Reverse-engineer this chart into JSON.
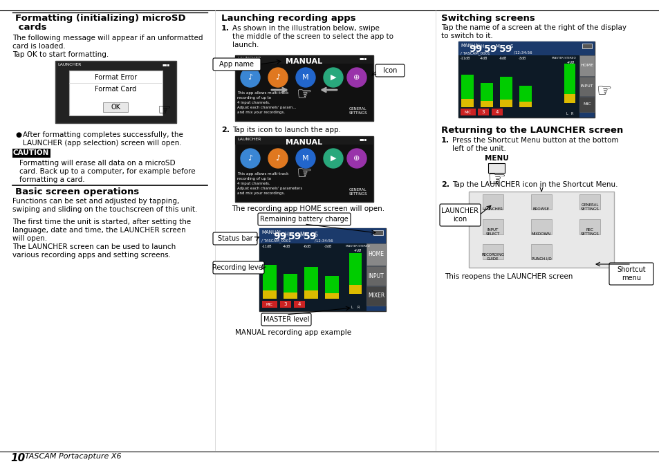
{
  "background_color": "#ffffff",
  "page_number": "10",
  "page_brand": "TASCAM Portacapture X6",
  "col1": {
    "section1_title_line1": "Formatting (initializing) microSD",
    "section1_title_line2": " cards",
    "section1_body": [
      "The following message will appear if an unformatted",
      "card is loaded.",
      "Tap OK to start formatting."
    ],
    "bullet1_line1": "After formatting completes successfully, the",
    "bullet1_line2": "LAUNCHER (app selection) screen will open.",
    "caution_label": "CAUTION",
    "caution_body": [
      "Formatting will erase all data on a microSD",
      "card. Back up to a computer, for example before",
      "formatting a card."
    ],
    "section2_title": "Basic screen operations",
    "section2_body": [
      "Functions can be set and adjusted by tapping,",
      "swiping and sliding on the touchscreen of this unit.",
      "",
      "The first time the unit is started, after setting the",
      "language, date and time, the LAUNCHER screen",
      "will open.",
      "The LAUNCHER screen can be used to launch",
      "various recording apps and setting screens."
    ]
  },
  "col2": {
    "section_title": "Launching recording apps",
    "step1_label": "1.",
    "step1_body": [
      "As shown in the illustration below, swipe",
      "the middle of the screen to select the app to",
      "launch."
    ],
    "callout_appname": "App name",
    "callout_icon": "Icon",
    "step2_label": "2.",
    "step2_body": "Tap its icon to launch the app.",
    "caption1": "The recording app HOME screen will open.",
    "callout_battery": "Remaining battery charge",
    "callout_statusbar": "Status bar",
    "callout_reclevel": "Recording level",
    "callout_master": "MASTER level",
    "caption2": "MANUAL recording app example"
  },
  "col3": {
    "section1_title": "Switching screens",
    "section1_body": [
      "Tap the name of a screen at the right of the display",
      "to switch to it."
    ],
    "section2_title": "Returning to the LAUNCHER screen",
    "step1_label": "1.",
    "step1_body": [
      "Press the Shortcut Menu button at the bottom",
      "left of the unit."
    ],
    "menu_label": "MENU",
    "step2_label": "2.",
    "step2_body": "Tap the LAUNCHER icon in the Shortcut Menu.",
    "callout_launcher": "LAUNCHER\nicon",
    "callout_shortcut": "Shortcut\nmenu",
    "caption": "This reopens the LAUNCHER screen"
  }
}
